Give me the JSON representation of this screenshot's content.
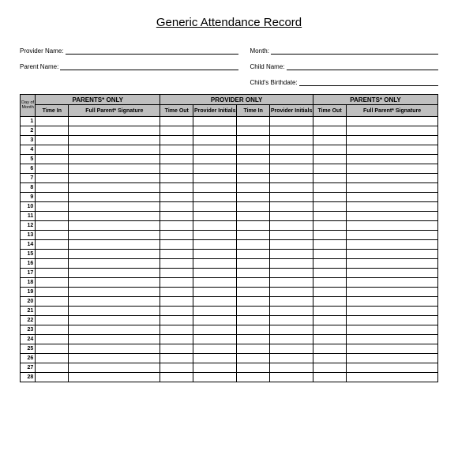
{
  "title": "Generic Attendance Record",
  "form": {
    "provider": "Provider Name:",
    "month": "Month:",
    "parent": "Parent Name:",
    "child": "Child Name:",
    "birthdate": "Child's Birthdate:"
  },
  "table": {
    "section1": "PARENTS* ONLY",
    "section2": "PROVIDER ONLY",
    "section3": "PARENTS* ONLY",
    "dayHeader": "Day of Month",
    "cols": {
      "timeIn": "Time In",
      "sig": "Full Parent* Signature",
      "timeOut": "Time Out",
      "provInit": "Provider Initials",
      "timeIn2": "Time In",
      "provInit2": "Provider Initials",
      "timeOut2": "Time Out",
      "sig2": "Full Parent* Signature"
    },
    "days": 28
  }
}
